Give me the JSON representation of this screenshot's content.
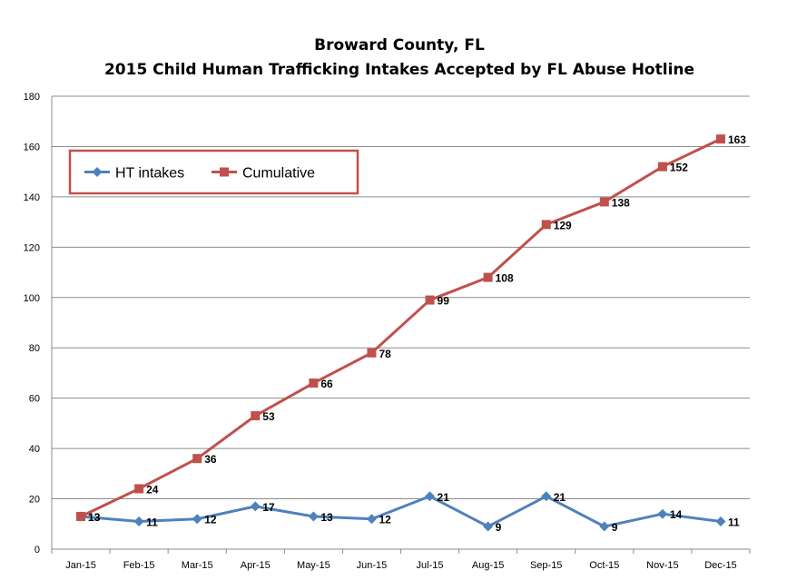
{
  "chart_data": {
    "type": "line",
    "title": "Broward County, FL",
    "subtitle": "2015 Child Human Trafficking Intakes Accepted by FL Abuse Hotline",
    "xlabel": "",
    "ylabel": "",
    "categories": [
      "Jan-15",
      "Feb-15",
      "Mar-15",
      "Apr-15",
      "May-15",
      "Jun-15",
      "Jul-15",
      "Aug-15",
      "Sep-15",
      "Oct-15",
      "Nov-15",
      "Dec-15"
    ],
    "series": [
      {
        "name": "HT intakes",
        "color": "#4F81BD",
        "marker": "diamond",
        "values": [
          13,
          11,
          12,
          17,
          13,
          12,
          21,
          9,
          21,
          9,
          14,
          11
        ]
      },
      {
        "name": "Cumulative",
        "color": "#C0504D",
        "marker": "square",
        "values": [
          13,
          24,
          36,
          53,
          66,
          78,
          99,
          108,
          129,
          138,
          152,
          163
        ]
      }
    ],
    "ylim": [
      0,
      180
    ],
    "yticks": [
      0,
      20,
      40,
      60,
      80,
      100,
      120,
      140,
      160,
      180
    ],
    "grid": true,
    "legend": {
      "position": "top-left",
      "border_color": "#C0504D"
    }
  }
}
